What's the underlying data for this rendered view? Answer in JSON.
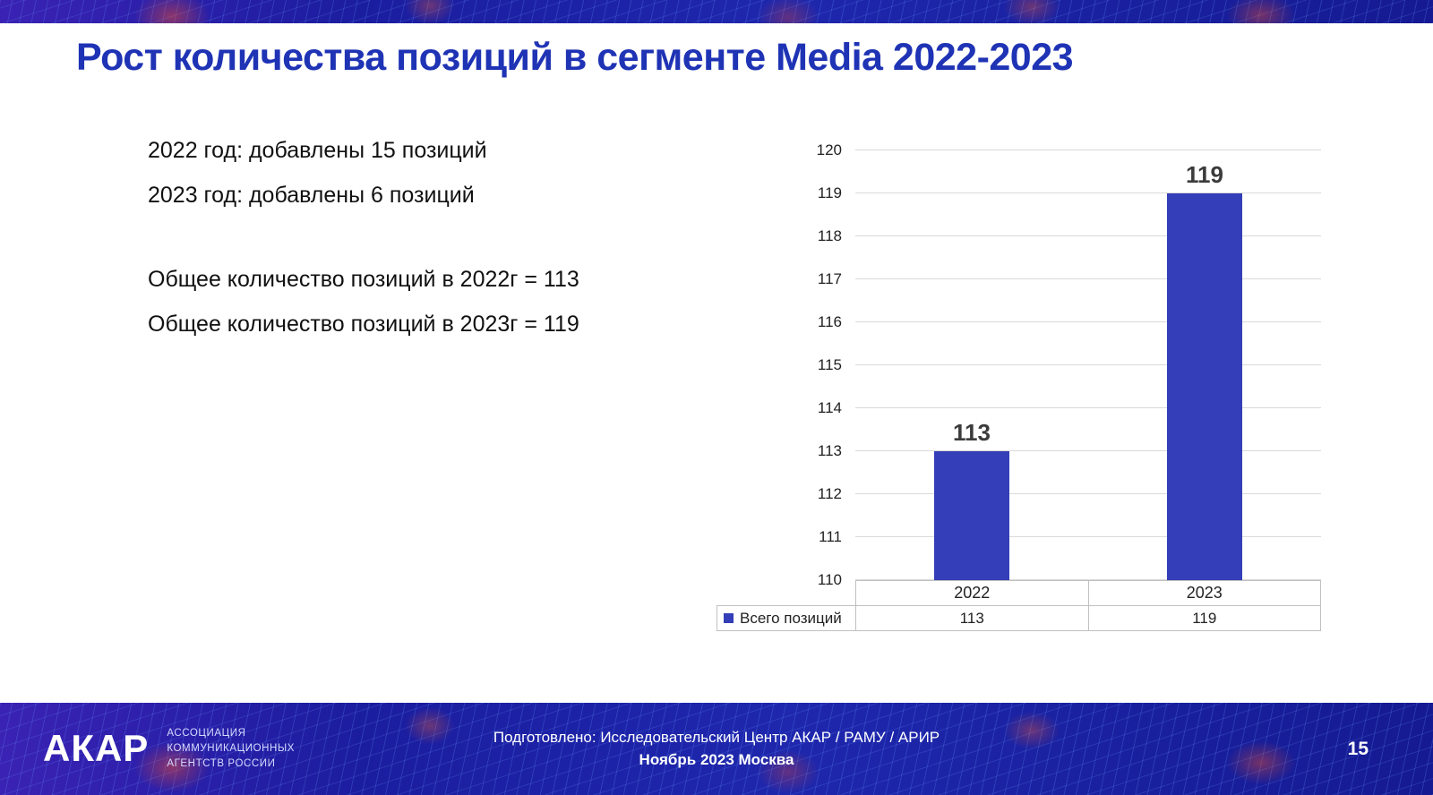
{
  "slide": {
    "title": "Рост количества позиций в сегменте Media 2022-2023",
    "bullets": [
      "2022 год: добавлены 15 позиций",
      "2023 год: добавлены 6 позиций",
      "Общее количество позиций в 2022г = 113",
      "Общее количество позиций в 2023г = 119"
    ]
  },
  "chart_data": {
    "type": "bar",
    "title": "",
    "categories": [
      "2022",
      "2023"
    ],
    "series": [
      {
        "name": "Всего позиций",
        "values": [
          113,
          119
        ]
      }
    ],
    "ylim": [
      110,
      120
    ],
    "ytick_step": 1,
    "grid": true,
    "legend_position": "bottom-table",
    "bar_color": "#333eb8"
  },
  "footer": {
    "logo_text": "АКАР",
    "logo_sub": [
      "АССОЦИАЦИЯ",
      "КОММУНИКАЦИОННЫХ",
      "АГЕНТСТВ РОССИИ"
    ],
    "prepared_line1": "Подготовлено: Исследовательский Центр АКАР / РАМУ / АРИР",
    "prepared_line2": "Ноябрь 2023 Москва",
    "page_number": "15"
  },
  "colors": {
    "accent_blue": "#1f33b5",
    "bar_blue": "#333eb8",
    "footer_blue": "#1b1d9f",
    "gridline_gray": "#d9d9d9"
  }
}
